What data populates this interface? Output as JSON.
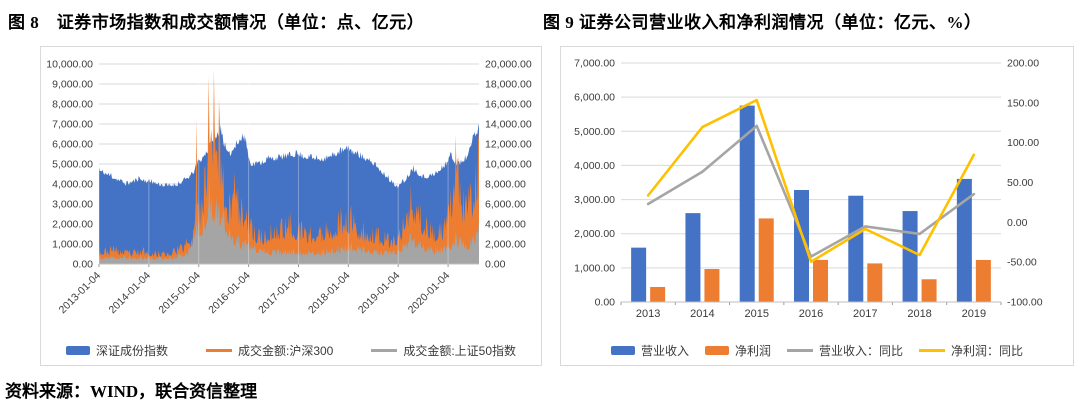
{
  "page": {
    "source_note": "资料来源：WIND，联合资信整理"
  },
  "figure8": {
    "title": "图 8　证券市场指数和成交额情况（单位：点、亿元）"
  },
  "figure9": {
    "title": "图 9 证券公司营业收入和净利润情况（单位：亿元、%）"
  },
  "colors": {
    "blue": "#4472C4",
    "orange": "#ED7D31",
    "gray": "#A5A5A5",
    "yellow": "#FFC000",
    "gridline": "#d9d9d9",
    "axis_text": "#3b3b3b",
    "frame": "#d9d9d9"
  },
  "chart_data": [
    {
      "type": "area",
      "title": "证券市场指数和成交额情况",
      "units": "点、亿元",
      "x_axis": {
        "labels": [
          "2013-01-04",
          "2014-01-04",
          "2015-01-04",
          "2016-01-04",
          "2017-01-04",
          "2018-01-04",
          "2019-01-04",
          "2020-01-04"
        ],
        "positions_years": [
          0,
          1,
          2,
          3,
          4,
          5,
          6,
          7
        ],
        "domain_years": [
          0,
          7.62
        ]
      },
      "left_axis": {
        "min": 0,
        "max": 10000,
        "step": 1000,
        "tick_labels": [
          "10,000.00",
          "9,000.00",
          "8,000.00",
          "7,000.00",
          "6,000.00",
          "5,000.00",
          "4,000.00",
          "3,000.00",
          "2,000.00",
          "1,000.00",
          "0.00"
        ]
      },
      "right_axis": {
        "min": 0,
        "max": 20000,
        "step": 2000,
        "tick_labels": [
          "20,000.00",
          "18,000.00",
          "16,000.00",
          "14,000.00",
          "12,000.00",
          "10,000.00",
          "8,000.00",
          "6,000.00",
          "4,000.00",
          "2,000.00",
          "0.00"
        ]
      },
      "legend_position": "bottom",
      "grid": true,
      "series": [
        {
          "name": "深证成份指数",
          "axis": "left",
          "style": "area",
          "marker": "bar",
          "color": "#4472C4",
          "anchors": [
            [
              0,
              4850
            ],
            [
              0.25,
              4550
            ],
            [
              0.55,
              4150
            ],
            [
              0.8,
              4400
            ],
            [
              1.05,
              4250
            ],
            [
              1.35,
              4050
            ],
            [
              1.6,
              4150
            ],
            [
              1.85,
              4600
            ],
            [
              2.0,
              5250
            ],
            [
              2.2,
              5950
            ],
            [
              2.38,
              6600
            ],
            [
              2.45,
              6950
            ],
            [
              2.52,
              6100
            ],
            [
              2.6,
              5600
            ],
            [
              2.75,
              6200
            ],
            [
              2.88,
              6550
            ],
            [
              2.95,
              6350
            ],
            [
              3.02,
              5250
            ],
            [
              3.15,
              5150
            ],
            [
              3.4,
              5450
            ],
            [
              3.7,
              5550
            ],
            [
              3.95,
              5700
            ],
            [
              4.25,
              5500
            ],
            [
              4.55,
              5450
            ],
            [
              4.85,
              5850
            ],
            [
              5.0,
              5950
            ],
            [
              5.25,
              5600
            ],
            [
              5.55,
              5100
            ],
            [
              5.8,
              4450
            ],
            [
              5.98,
              3950
            ],
            [
              6.1,
              4250
            ],
            [
              6.3,
              4950
            ],
            [
              6.5,
              4500
            ],
            [
              6.75,
              4650
            ],
            [
              6.95,
              5150
            ],
            [
              7.05,
              5600
            ],
            [
              7.2,
              5150
            ],
            [
              7.35,
              5450
            ],
            [
              7.5,
              6500
            ],
            [
              7.62,
              7050
            ]
          ]
        },
        {
          "name": "成交金额:沪深300",
          "axis": "right",
          "style": "area",
          "marker": "line",
          "color": "#ED7D31",
          "anchors": [
            [
              0,
              1600
            ],
            [
              0.3,
              1900
            ],
            [
              0.6,
              1450
            ],
            [
              0.9,
              1700
            ],
            [
              1.2,
              1350
            ],
            [
              1.5,
              1600
            ],
            [
              1.75,
              2600
            ],
            [
              1.9,
              3500
            ],
            [
              1.95,
              14500
            ],
            [
              2.02,
              6500
            ],
            [
              2.12,
              9500
            ],
            [
              2.2,
              18800
            ],
            [
              2.3,
              19500
            ],
            [
              2.4,
              16500
            ],
            [
              2.5,
              10000
            ],
            [
              2.62,
              7200
            ],
            [
              2.72,
              9200
            ],
            [
              2.85,
              6800
            ],
            [
              3.0,
              5600
            ],
            [
              3.2,
              3600
            ],
            [
              3.45,
              4100
            ],
            [
              3.65,
              4600
            ],
            [
              3.85,
              5300
            ],
            [
              4.05,
              4300
            ],
            [
              4.25,
              3900
            ],
            [
              4.55,
              4300
            ],
            [
              4.85,
              5700
            ],
            [
              5.05,
              5900
            ],
            [
              5.3,
              4300
            ],
            [
              5.6,
              3700
            ],
            [
              5.9,
              2900
            ],
            [
              6.1,
              4700
            ],
            [
              6.25,
              8000
            ],
            [
              6.45,
              6100
            ],
            [
              6.65,
              4300
            ],
            [
              6.85,
              4200
            ],
            [
              7.0,
              5600
            ],
            [
              7.15,
              12900
            ],
            [
              7.3,
              7600
            ],
            [
              7.45,
              8200
            ],
            [
              7.62,
              13200
            ]
          ]
        },
        {
          "name": "成交金额:上证50指数",
          "axis": "right",
          "style": "area",
          "marker": "line",
          "color": "#A5A5A5",
          "anchors": [
            [
              0,
              750
            ],
            [
              0.5,
              850
            ],
            [
              1.0,
              750
            ],
            [
              1.5,
              850
            ],
            [
              1.8,
              1600
            ],
            [
              1.95,
              4600
            ],
            [
              2.1,
              5200
            ],
            [
              2.22,
              8800
            ],
            [
              2.35,
              6600
            ],
            [
              2.5,
              5600
            ],
            [
              2.62,
              3600
            ],
            [
              2.8,
              2900
            ],
            [
              3.0,
              2300
            ],
            [
              3.3,
              1600
            ],
            [
              3.6,
              1500
            ],
            [
              3.9,
              1600
            ],
            [
              4.2,
              1500
            ],
            [
              4.5,
              1600
            ],
            [
              4.8,
              1900
            ],
            [
              5.05,
              2300
            ],
            [
              5.3,
              1800
            ],
            [
              5.6,
              1500
            ],
            [
              5.9,
              1400
            ],
            [
              6.1,
              2000
            ],
            [
              6.25,
              3100
            ],
            [
              6.45,
              2400
            ],
            [
              6.65,
              1800
            ],
            [
              6.85,
              1700
            ],
            [
              7.0,
              2100
            ],
            [
              7.15,
              3300
            ],
            [
              7.3,
              2400
            ],
            [
              7.45,
              2700
            ],
            [
              7.62,
              4300
            ]
          ]
        }
      ]
    },
    {
      "type": "bar+line",
      "title": "证券公司营业收入和净利润情况",
      "units": "亿元、%",
      "categories": [
        "2013",
        "2014",
        "2015",
        "2016",
        "2017",
        "2018",
        "2019"
      ],
      "left_axis": {
        "min": 0,
        "max": 7000,
        "step": 1000,
        "tick_labels": [
          "7,000.00",
          "6,000.00",
          "5,000.00",
          "4,000.00",
          "3,000.00",
          "2,000.00",
          "1,000.00",
          "0.00"
        ]
      },
      "right_axis": {
        "min": -100,
        "max": 200,
        "step": 50,
        "tick_labels": [
          "200.00",
          "150.00",
          "100.00",
          "50.00",
          "0.00",
          "-50.00",
          "-100.00"
        ]
      },
      "legend_position": "bottom",
      "grid": true,
      "series": [
        {
          "name": "营业收入",
          "type": "bar",
          "axis": "left",
          "marker": "bar",
          "color": "#4472C4",
          "values": [
            1592,
            2603,
            5752,
            3280,
            3113,
            2663,
            3605
          ]
        },
        {
          "name": "净利润",
          "type": "bar",
          "axis": "left",
          "marker": "bar",
          "color": "#ED7D31",
          "values": [
            440,
            966,
            2448,
            1234,
            1130,
            666,
            1231
          ]
        },
        {
          "name": "营业收入：同比",
          "type": "line",
          "axis": "right",
          "marker": "line",
          "color": "#A5A5A5",
          "values": [
            23.0,
            63.5,
            121.0,
            -43.0,
            -5.1,
            -14.5,
            35.4
          ]
        },
        {
          "name": "净利润：同比",
          "type": "line",
          "axis": "right",
          "marker": "line",
          "color": "#FFC000",
          "values": [
            33.7,
            119.5,
            153.4,
            -49.6,
            -8.4,
            -41.0,
            84.8
          ]
        }
      ]
    }
  ]
}
